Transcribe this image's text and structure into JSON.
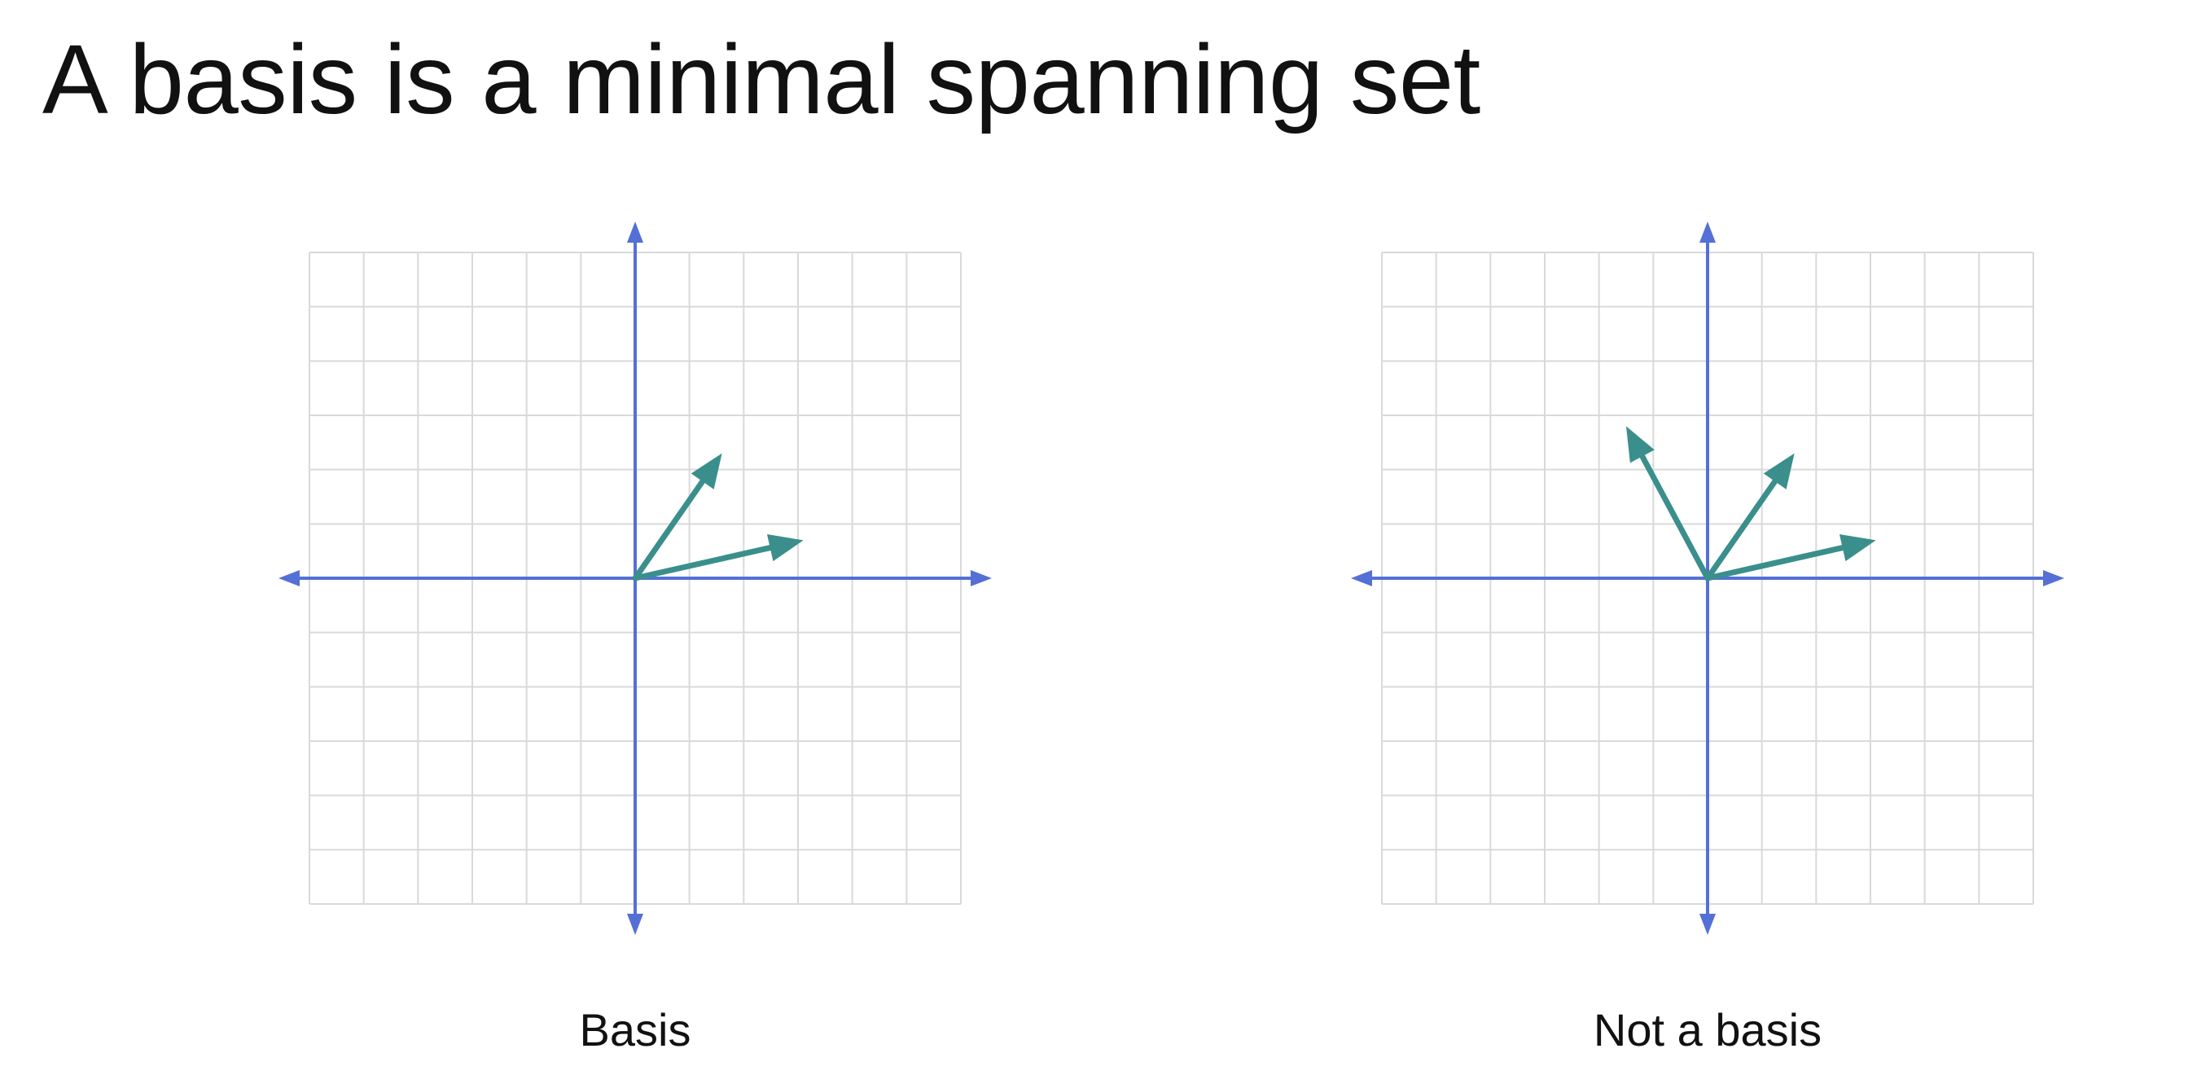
{
  "title": "A basis is a minimal spanning set",
  "colors": {
    "axis": "#5470d6",
    "vector": "#3a8f8c",
    "grid": "#d9d9d9"
  },
  "diagrams": [
    {
      "caption": "Basis",
      "grid_range": [
        -6,
        6
      ],
      "vectors": [
        [
          1.6,
          2.3
        ],
        [
          3.1,
          0.7
        ]
      ]
    },
    {
      "caption": "Not a basis",
      "grid_range": [
        -6,
        6
      ],
      "vectors": [
        [
          -1.5,
          2.8
        ],
        [
          1.6,
          2.3
        ],
        [
          3.1,
          0.7
        ]
      ]
    }
  ]
}
